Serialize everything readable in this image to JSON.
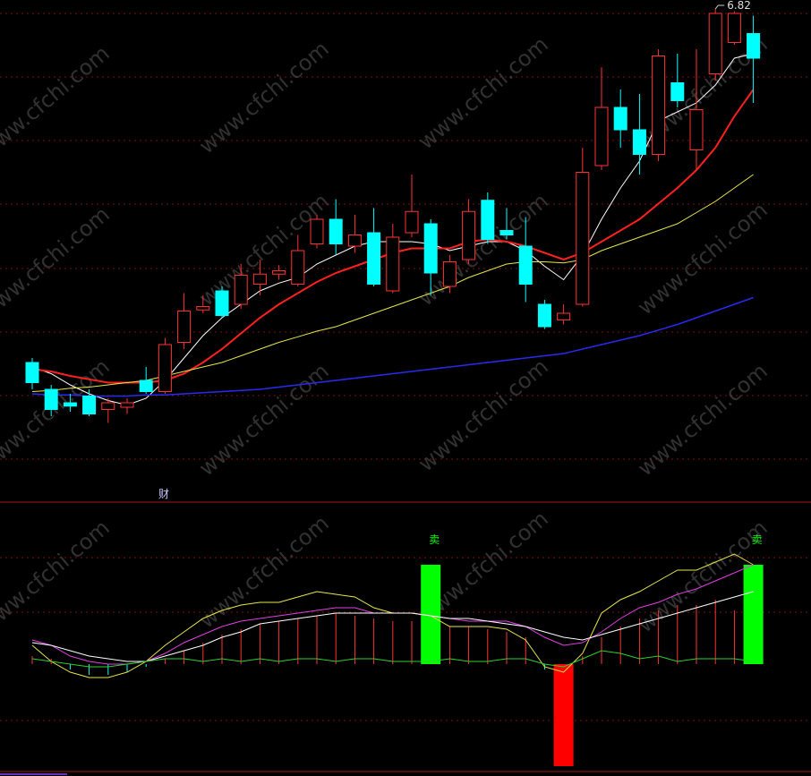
{
  "watermark": "www.cfchi.com",
  "chart_data": [
    {
      "type": "candlestick",
      "annotation": "财",
      "ylim": [
        2.46,
        6.9
      ],
      "up_color": "#ff3232",
      "down_color": "#00ffff",
      "ohlc": [
        [
          3.66,
          3.7,
          3.42,
          3.48
        ],
        [
          3.42,
          3.46,
          3.18,
          3.24
        ],
        [
          3.3,
          3.38,
          3.22,
          3.27
        ],
        [
          3.36,
          3.42,
          3.18,
          3.2
        ],
        [
          3.24,
          3.34,
          3.12,
          3.3
        ],
        [
          3.26,
          3.34,
          3.2,
          3.3
        ],
        [
          3.5,
          3.62,
          3.38,
          3.4
        ],
        [
          3.4,
          3.88,
          3.38,
          3.82
        ],
        [
          3.84,
          4.28,
          3.78,
          4.12
        ],
        [
          4.13,
          4.26,
          4.1,
          4.16
        ],
        [
          4.3,
          4.34,
          4.06,
          4.08
        ],
        [
          4.18,
          4.54,
          4.14,
          4.44
        ],
        [
          4.36,
          4.58,
          4.26,
          4.45
        ],
        [
          4.45,
          4.53,
          4.4,
          4.48
        ],
        [
          4.36,
          4.8,
          4.34,
          4.66
        ],
        [
          4.72,
          4.98,
          4.68,
          4.94
        ],
        [
          4.94,
          5.12,
          4.62,
          4.72
        ],
        [
          4.7,
          4.98,
          4.64,
          4.8
        ],
        [
          4.82,
          5.04,
          4.34,
          4.36
        ],
        [
          4.3,
          4.9,
          4.28,
          4.78
        ],
        [
          4.82,
          5.34,
          4.78,
          5.01
        ],
        [
          4.9,
          4.94,
          4.26,
          4.46
        ],
        [
          4.34,
          4.62,
          4.28,
          4.56
        ],
        [
          4.58,
          5.12,
          4.54,
          5.01
        ],
        [
          5.11,
          5.18,
          4.72,
          4.76
        ],
        [
          4.84,
          5.04,
          4.76,
          4.8
        ],
        [
          4.7,
          4.96,
          4.2,
          4.36
        ],
        [
          4.18,
          4.22,
          3.96,
          3.98
        ],
        [
          4.04,
          4.18,
          4.0,
          4.1
        ],
        [
          4.18,
          5.58,
          4.16,
          5.36
        ],
        [
          5.42,
          6.3,
          5.38,
          5.94
        ],
        [
          5.94,
          6.1,
          5.58,
          5.74
        ],
        [
          5.74,
          6.06,
          5.34,
          5.52
        ],
        [
          5.52,
          6.46,
          5.46,
          6.4
        ],
        [
          6.16,
          6.42,
          5.94,
          6.0
        ],
        [
          5.56,
          6.46,
          5.38,
          5.92
        ],
        [
          6.24,
          6.82,
          6.18,
          6.78
        ],
        [
          6.52,
          6.8,
          6.5,
          6.78
        ],
        [
          6.6,
          6.76,
          5.98,
          6.38
        ]
      ],
      "lines": [
        {
          "color": "#ffffff",
          "width": 1,
          "values": [
            3.62,
            3.56,
            3.46,
            3.38,
            3.32,
            3.28,
            3.34,
            3.5,
            3.7,
            3.9,
            4.06,
            4.18,
            4.3,
            4.37,
            4.42,
            4.54,
            4.62,
            4.7,
            4.74,
            4.74,
            4.74,
            4.72,
            4.66,
            4.7,
            4.74,
            4.74,
            4.66,
            4.52,
            4.4,
            4.62,
            4.94,
            5.22,
            5.46,
            5.82,
            5.9,
            5.98,
            6.14,
            6.38,
            6.42
          ]
        },
        {
          "color": "#ff2020",
          "width": 2,
          "values": [
            3.6,
            3.58,
            3.54,
            3.51,
            3.48,
            3.48,
            3.48,
            3.5,
            3.56,
            3.66,
            3.78,
            3.92,
            4.06,
            4.18,
            4.28,
            4.38,
            4.46,
            4.52,
            4.58,
            4.64,
            4.68,
            4.68,
            4.68,
            4.74,
            4.76,
            4.74,
            4.7,
            4.64,
            4.58,
            4.64,
            4.74,
            4.84,
            4.94,
            5.08,
            5.22,
            5.38,
            5.58,
            5.86,
            6.1
          ]
        },
        {
          "color": "#e6e64a",
          "width": 1,
          "values": [
            3.4,
            3.41,
            3.43,
            3.44,
            3.46,
            3.48,
            3.5,
            3.54,
            3.58,
            3.62,
            3.66,
            3.72,
            3.78,
            3.84,
            3.89,
            3.94,
            3.98,
            4.04,
            4.1,
            4.16,
            4.22,
            4.28,
            4.34,
            4.42,
            4.48,
            4.54,
            4.56,
            4.56,
            4.55,
            4.58,
            4.66,
            4.72,
            4.78,
            4.84,
            4.9,
            5.0,
            5.1,
            5.22,
            5.34
          ]
        },
        {
          "color": "#2a2aee",
          "width": 1.5,
          "values": [
            3.38,
            3.37,
            3.37,
            3.36,
            3.36,
            3.36,
            3.37,
            3.37,
            3.38,
            3.39,
            3.4,
            3.41,
            3.42,
            3.44,
            3.46,
            3.48,
            3.5,
            3.52,
            3.54,
            3.56,
            3.58,
            3.6,
            3.62,
            3.64,
            3.66,
            3.68,
            3.7,
            3.72,
            3.74,
            3.78,
            3.82,
            3.86,
            3.9,
            3.95,
            4.0,
            4.06,
            4.12,
            4.18,
            4.24
          ]
        }
      ]
    },
    {
      "type": "indicator",
      "ylim": [
        -40,
        60
      ],
      "lines": [
        {
          "color": "#e6e64a",
          "values": [
            7,
            1,
            -3,
            -5,
            -5,
            -3,
            1,
            7,
            12,
            17,
            20,
            22,
            23,
            23,
            25,
            27,
            26,
            25,
            21,
            19,
            19,
            18,
            14,
            14,
            14,
            13,
            9,
            -1,
            -3,
            4,
            19,
            24,
            27,
            31,
            35,
            35,
            38,
            41,
            37
          ]
        },
        {
          "color": "#e040e0",
          "values": [
            9,
            7,
            3,
            1,
            0,
            0,
            1,
            4,
            8,
            11,
            14,
            16,
            17,
            18,
            19,
            20,
            21,
            21,
            19,
            19,
            19,
            18,
            17,
            16,
            16,
            16,
            14,
            10,
            7,
            8,
            12,
            17,
            21,
            23,
            26,
            28,
            31,
            34,
            37
          ]
        },
        {
          "color": "#ffffff",
          "values": [
            8,
            7,
            5,
            3,
            2,
            1,
            1,
            3,
            5,
            7,
            10,
            12,
            15,
            16,
            17,
            18,
            19,
            19,
            19,
            19,
            19,
            18,
            17,
            17,
            16,
            15,
            14,
            12,
            10,
            9,
            11,
            13,
            15,
            17,
            19,
            21,
            23,
            25,
            27
          ]
        },
        {
          "color": "#30d030",
          "values": [
            2,
            1,
            0,
            -1,
            -1,
            0,
            1,
            2,
            2,
            1,
            2,
            1,
            2,
            1,
            2,
            2,
            1,
            2,
            2,
            1,
            1,
            1,
            2,
            1,
            1,
            2,
            2,
            0,
            -1,
            2,
            5,
            4,
            2,
            3,
            1,
            2,
            2,
            2,
            1
          ]
        }
      ],
      "histogram": {
        "up_color": "#ff3232",
        "down_color": "#00ffff",
        "values": [
          3,
          2,
          -2,
          -4,
          -4,
          -3,
          -1,
          2,
          5,
          8,
          11,
          13,
          15,
          16,
          17,
          18,
          19,
          18,
          17,
          16,
          16,
          15,
          14,
          14,
          13,
          12,
          10,
          -2,
          -4,
          3,
          10,
          14,
          17,
          20,
          22,
          22,
          24,
          20,
          18
        ]
      },
      "signals": [
        {
          "color": "#00ff00",
          "label": "卖",
          "values": [
            null,
            null,
            null,
            null,
            null,
            null,
            null,
            null,
            null,
            null,
            null,
            null,
            null,
            null,
            null,
            null,
            null,
            null,
            null,
            null,
            null,
            37,
            null,
            null,
            null,
            null,
            null,
            null,
            null,
            null,
            null,
            null,
            null,
            null,
            null,
            null,
            null,
            null,
            37
          ]
        },
        {
          "color": "#ff0000",
          "values": [
            null,
            null,
            null,
            null,
            null,
            null,
            null,
            null,
            null,
            null,
            null,
            null,
            null,
            null,
            null,
            null,
            null,
            null,
            null,
            null,
            null,
            null,
            null,
            null,
            null,
            null,
            null,
            null,
            -38,
            null,
            null,
            null,
            null,
            null,
            null,
            null,
            null,
            null,
            null
          ]
        }
      ]
    }
  ]
}
